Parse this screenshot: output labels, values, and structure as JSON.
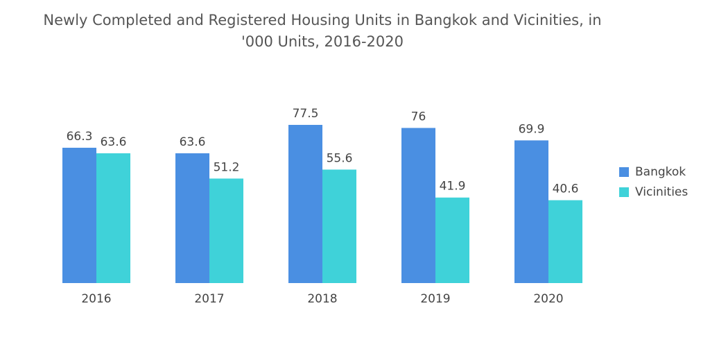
{
  "chart_data": {
    "type": "bar",
    "title": "Newly Completed and Registered Housing Units in Bangkok and Vicinities, in '000 Units, 2016-2020",
    "categories": [
      "2016",
      "2017",
      "2018",
      "2019",
      "2020"
    ],
    "series": [
      {
        "name": "Bangkok",
        "color": "#4a8fe2",
        "values": [
          66.3,
          63.6,
          77.5,
          76,
          69.9
        ]
      },
      {
        "name": "Vicinities",
        "color": "#3fd2d9",
        "values": [
          63.6,
          51.2,
          55.6,
          41.9,
          40.6
        ]
      }
    ],
    "legend": "right"
  }
}
